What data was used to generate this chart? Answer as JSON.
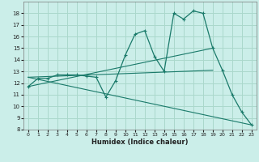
{
  "xlabel": "Humidex (Indice chaleur)",
  "background_color": "#cbeee9",
  "grid_color": "#aad8cc",
  "line_color": "#1a7a6a",
  "xlim": [
    -0.5,
    23.5
  ],
  "ylim": [
    8,
    19
  ],
  "yticks": [
    8,
    9,
    10,
    11,
    12,
    13,
    14,
    15,
    16,
    17,
    18
  ],
  "xticks": [
    0,
    1,
    2,
    3,
    4,
    5,
    6,
    7,
    8,
    9,
    10,
    11,
    12,
    13,
    14,
    15,
    16,
    17,
    18,
    19,
    20,
    21,
    22,
    23
  ],
  "series1_x": [
    0,
    1,
    2,
    3,
    4,
    5,
    6,
    7,
    8,
    9,
    10,
    11,
    12,
    13,
    14,
    15,
    16,
    17,
    18,
    19,
    20,
    21,
    22,
    23
  ],
  "series1_y": [
    11.7,
    12.4,
    12.4,
    12.7,
    12.7,
    12.7,
    12.6,
    12.5,
    10.8,
    12.2,
    14.4,
    16.2,
    16.5,
    14.3,
    13.0,
    18.0,
    17.5,
    18.2,
    18.0,
    15.0,
    13.1,
    11.0,
    9.5,
    8.4
  ],
  "line2_x": [
    0,
    19
  ],
  "line2_y": [
    11.7,
    15.0
  ],
  "line3_x": [
    0,
    23
  ],
  "line3_y": [
    12.5,
    8.4
  ],
  "line4_x": [
    0,
    19
  ],
  "line4_y": [
    12.5,
    13.1
  ]
}
